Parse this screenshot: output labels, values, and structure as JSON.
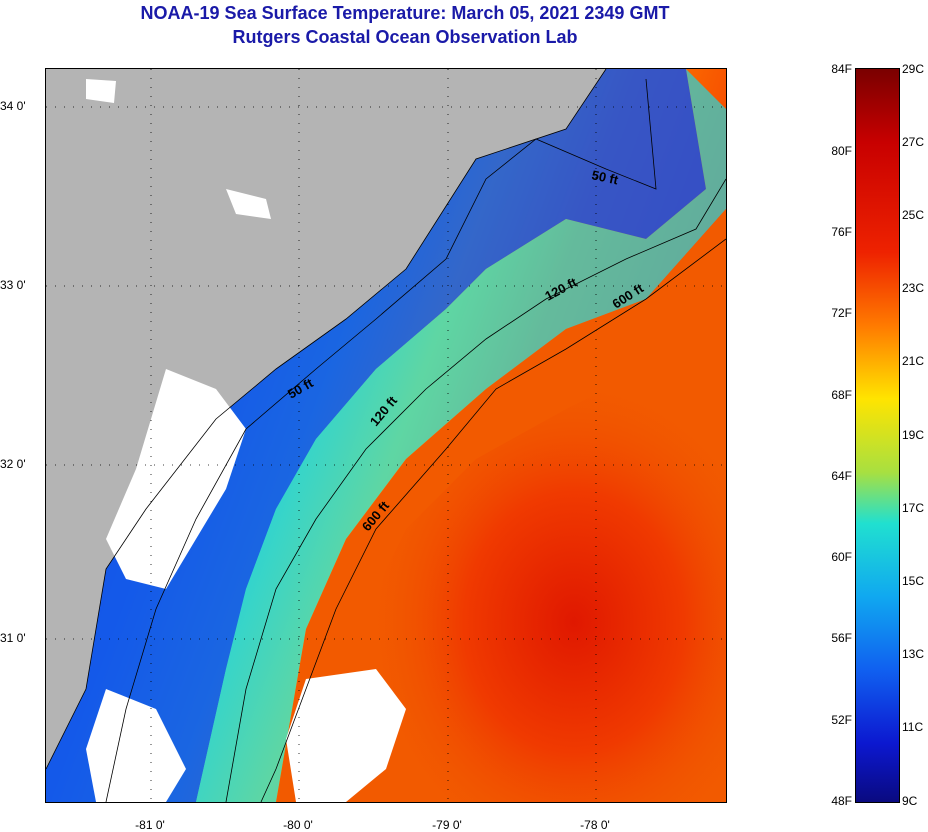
{
  "title": {
    "line1": "NOAA-19 Sea Surface Temperature:  March 05, 2021 2349 GMT",
    "line2": "Rutgers Coastal Ocean Observation Lab"
  },
  "map": {
    "lat_labels": [
      "34 0'",
      "33 0'",
      "32 0'",
      "31 0'"
    ],
    "lon_labels": [
      "-81 0'",
      "-80 0'",
      "-79 0'",
      "-78 0'"
    ],
    "contour_labels": [
      "50 ft",
      "120 ft",
      "600 ft",
      "50 ft",
      "120 ft",
      "600 ft"
    ],
    "colors": {
      "land": "#b4b4b4",
      "cloud": "#ffffff",
      "cold": "#1040e0",
      "warm": "#ee2200"
    }
  },
  "colorbar": {
    "fahrenheit": [
      "84F",
      "80F",
      "76F",
      "72F",
      "68F",
      "64F",
      "60F",
      "56F",
      "52F",
      "48F"
    ],
    "celsius": [
      "29C",
      "27C",
      "25C",
      "23C",
      "21C",
      "19C",
      "17C",
      "15C",
      "13C",
      "11C",
      "9C"
    ]
  }
}
